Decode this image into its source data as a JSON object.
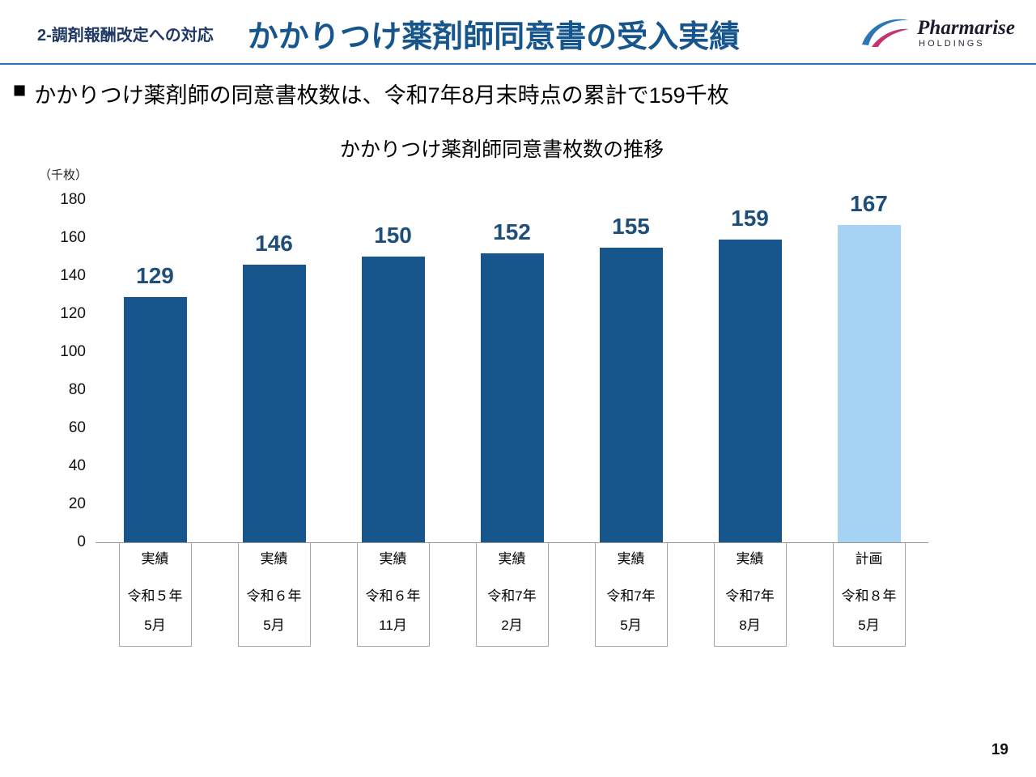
{
  "header": {
    "section_label": "2-調剤報酬改定への対応",
    "title": "かかりつけ薬剤師同意書の受入実績",
    "logo": {
      "name": "Pharmarise",
      "sub": "HOLDINGS"
    }
  },
  "bullet": {
    "marker": "■",
    "text": "かかりつけ薬剤師の同意書枚数は、令和7年8月末時点の累計で159千枚"
  },
  "chart_data": {
    "type": "bar",
    "title": "かかりつけ薬剤師同意書枚数の推移",
    "unit_label": "（千枚）",
    "ylabel": "千枚",
    "ylim": [
      0,
      180
    ],
    "ytick_step": 20,
    "grid": false,
    "legend": "none",
    "categories": [
      {
        "status": "実績",
        "era": "令和５年",
        "month": "5月"
      },
      {
        "status": "実績",
        "era": "令和６年",
        "month": "5月"
      },
      {
        "status": "実績",
        "era": "令和６年",
        "month": "11月"
      },
      {
        "status": "実績",
        "era": "令和7年",
        "month": "2月"
      },
      {
        "status": "実績",
        "era": "令和7年",
        "month": "5月"
      },
      {
        "status": "実績",
        "era": "令和7年",
        "month": "8月"
      },
      {
        "status": "計画",
        "era": "令和８年",
        "month": "5月"
      }
    ],
    "values": [
      129,
      146,
      150,
      152,
      155,
      159,
      167
    ],
    "bar_colors": [
      "#16568D",
      "#16568D",
      "#16568D",
      "#16568D",
      "#16568D",
      "#16568D",
      "#A6D3F4"
    ],
    "colors": {
      "actual": "#16568D",
      "plan": "#A6D3F4",
      "value_label": "#1F4E79",
      "accent_line": "#2E75B6"
    }
  },
  "footer": {
    "page_number": "19"
  }
}
